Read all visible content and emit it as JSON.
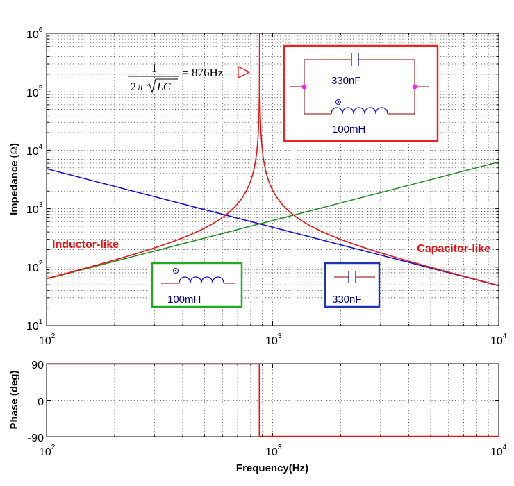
{
  "chart_data": [
    {
      "type": "line",
      "yscale": "log",
      "xscale": "log",
      "xlim": [
        100,
        10000
      ],
      "ylim": [
        10,
        1000000
      ],
      "ylabel": "Impedance (Ω)",
      "ylabel_prefix": "Impedance (",
      "ylabel_symbol": "Ω",
      "ylabel_suffix": ")",
      "grid": true,
      "xticks": [
        {
          "base": "10",
          "exp": "2",
          "value": 100
        },
        {
          "base": "10",
          "exp": "3",
          "value": 1000
        },
        {
          "base": "10",
          "exp": "4",
          "value": 10000
        }
      ],
      "yticks": [
        {
          "base": "10",
          "exp": "1",
          "value": 10
        },
        {
          "base": "10",
          "exp": "2",
          "value": 100
        },
        {
          "base": "10",
          "exp": "3",
          "value": 1000
        },
        {
          "base": "10",
          "exp": "4",
          "value": 10000
        },
        {
          "base": "10",
          "exp": "5",
          "value": 100000
        },
        {
          "base": "10",
          "exp": "6",
          "value": 1000000
        }
      ],
      "series": [
        {
          "name": "Inductor 100mH",
          "color": "#228B22",
          "x": [
            100,
            10000
          ],
          "y": [
            62.8,
            6283
          ]
        },
        {
          "name": "Capacitor 330nF",
          "color": "#1010CC",
          "x": [
            100,
            10000
          ],
          "y": [
            4823,
            48.2
          ]
        },
        {
          "name": "Parallel LC",
          "color": "#EE1111",
          "L": 0.1,
          "C": 3.3e-07,
          "resonance_hz": 876
        }
      ],
      "formula": {
        "numerator": "1",
        "prefix": "2",
        "pi": "π",
        "radicand": "LC",
        "equals": "=",
        "value": "876Hz"
      },
      "labels": {
        "inductor_like": "Inductor-like",
        "capacitor_like": "Capacitor-like"
      },
      "insets": {
        "parallel": {
          "cap": "330nF",
          "ind": "100mH"
        },
        "inductor": {
          "ind": "100mH"
        },
        "capacitor": {
          "cap": "330nF"
        }
      }
    },
    {
      "type": "line",
      "xscale": "log",
      "xlim": [
        100,
        10000
      ],
      "ylim": [
        -90,
        90
      ],
      "ylabel": "Phase (deg)",
      "xlabel": "Frequency(Hz)",
      "grid": true,
      "yticks": [
        "90",
        "0",
        "-90"
      ],
      "xticks": [
        {
          "base": "10",
          "exp": "2"
        },
        {
          "base": "10",
          "exp": "3"
        },
        {
          "base": "10",
          "exp": "4"
        }
      ],
      "series": [
        {
          "name": "Phase",
          "color": "#EE1111",
          "x": [
            100,
            876,
            876,
            10000
          ],
          "y": [
            90,
            90,
            -90,
            -90
          ]
        }
      ]
    }
  ]
}
